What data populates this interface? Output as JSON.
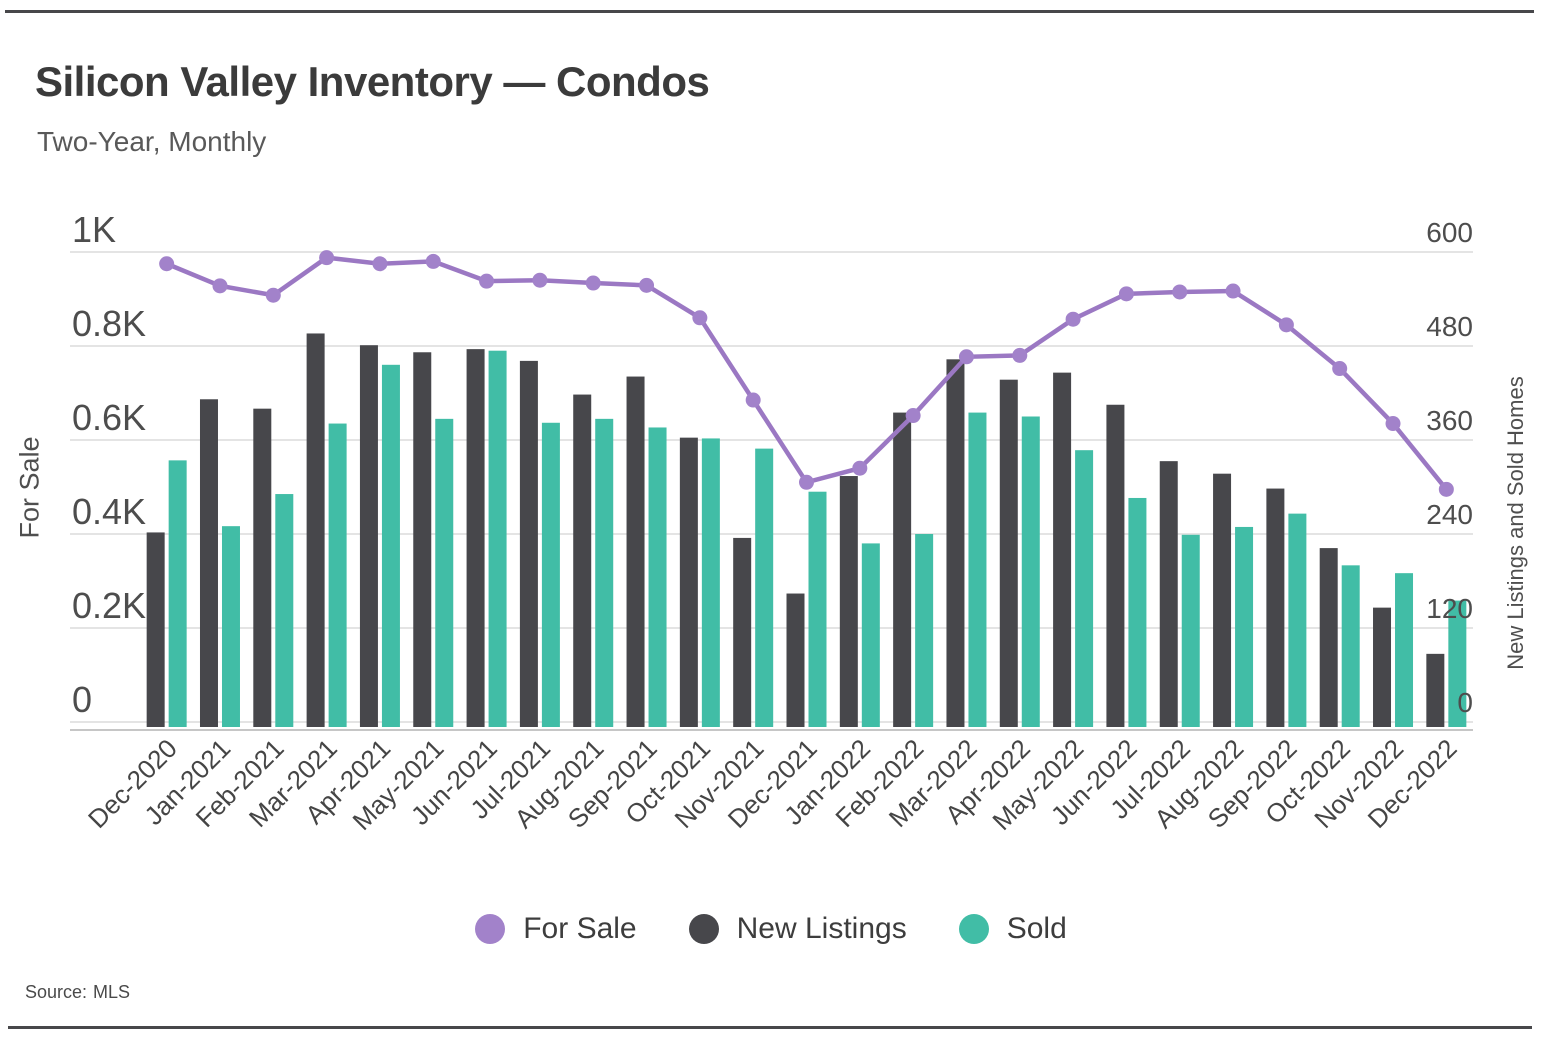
{
  "page": {
    "title": "Silicon Valley Inventory — Condos",
    "subtitle": "Two-Year, Monthly",
    "source_label": "Source:",
    "source_value": "MLS"
  },
  "colors": {
    "for_sale": "#a282ca",
    "for_sale_line": "#9b78c3",
    "new_listings": "#47474b",
    "sold": "#41bda6",
    "gridline": "#dcdcdc",
    "axis_line": "#c6c6c6",
    "tick_text": "#4d4d4d",
    "rule": "#47474a"
  },
  "chart_data": {
    "type": "bar",
    "subtype": "grouped bars with line overlay, dual y-axes",
    "title": "Silicon Valley Inventory — Condos",
    "subtitle": "Two-Year, Monthly",
    "categories": [
      "Dec-2020",
      "Jan-2021",
      "Feb-2021",
      "Mar-2021",
      "Apr-2021",
      "May-2021",
      "Jun-2021",
      "Jul-2021",
      "Aug-2021",
      "Sep-2021",
      "Oct-2021",
      "Nov-2021",
      "Dec-2021",
      "Jan-2022",
      "Feb-2022",
      "Mar-2022",
      "Apr-2022",
      "May-2022",
      "Jun-2022",
      "Jul-2022",
      "Aug-2022",
      "Sep-2022",
      "Oct-2022",
      "Nov-2022",
      "Dec-2022"
    ],
    "series": [
      {
        "name": "For Sale",
        "kind": "line",
        "axis": "left",
        "color": "#a282ca",
        "values": [
          975,
          928,
          908,
          988,
          975,
          980,
          938,
          940,
          934,
          929,
          860,
          685,
          510,
          540,
          652,
          777,
          780,
          857,
          911,
          915,
          917,
          845,
          752,
          635,
          495
        ]
      },
      {
        "name": "New Listings",
        "kind": "bar",
        "axis": "right",
        "color": "#47474b",
        "values": [
          242,
          412,
          400,
          496,
          481,
          472,
          476,
          461,
          418,
          441,
          363,
          235,
          164,
          314,
          395,
          463,
          437,
          446,
          405,
          333,
          317,
          298,
          222,
          146,
          87
        ]
      },
      {
        "name": "Sold",
        "kind": "bar",
        "axis": "right",
        "color": "#41bda6",
        "values": [
          334,
          250,
          291,
          381,
          456,
          387,
          474,
          382,
          387,
          376,
          362,
          349,
          294,
          228,
          240,
          395,
          390,
          347,
          286,
          239,
          249,
          266,
          200,
          190,
          155
        ]
      }
    ],
    "left_axis": {
      "label": "For Sale",
      "min": 0,
      "max": 1000,
      "ticks": [
        "1K",
        "0.8K",
        "0.6K",
        "0.4K",
        "0.2K",
        "0"
      ],
      "tick_values": [
        1000,
        800,
        600,
        400,
        200,
        0
      ]
    },
    "right_axis": {
      "label": "New Listings and Sold Homes",
      "min": 0,
      "max": 600,
      "ticks": [
        "600",
        "480",
        "360",
        "240",
        "120",
        "0"
      ],
      "tick_values": [
        600,
        480,
        360,
        240,
        120,
        0
      ]
    },
    "legend": [
      "For Sale",
      "New Listings",
      "Sold"
    ],
    "legend_position": "bottom",
    "grid": "horizontal"
  }
}
